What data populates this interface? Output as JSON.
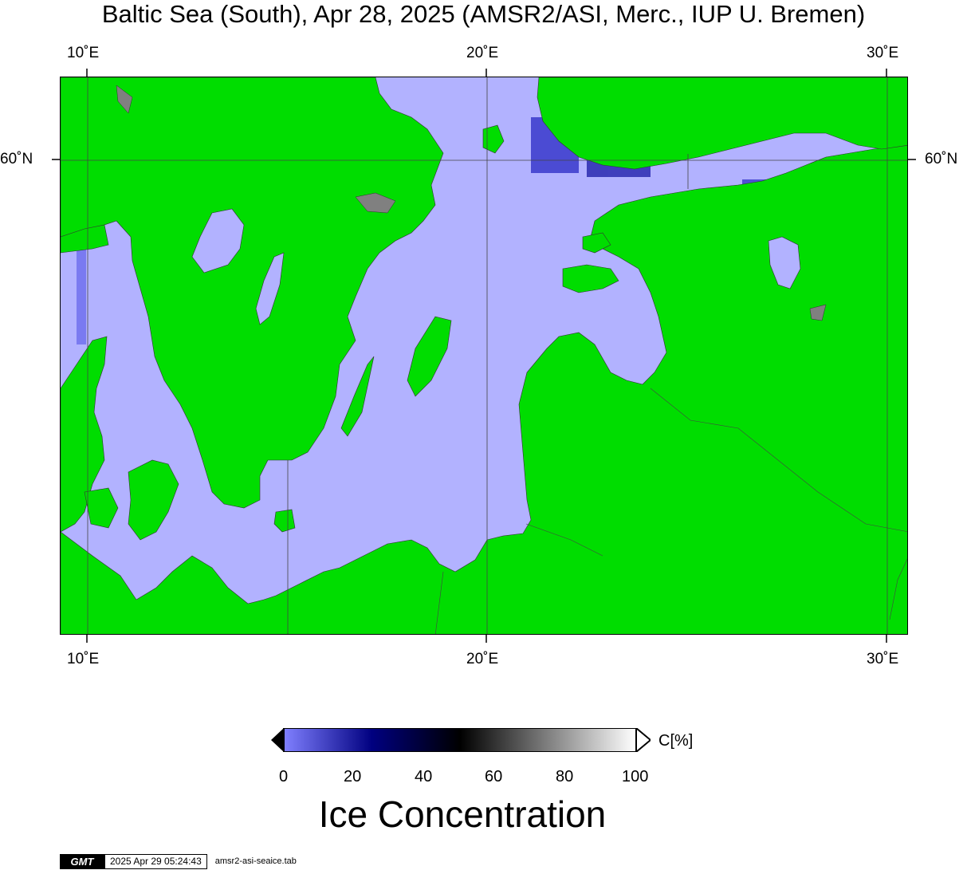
{
  "title": "Baltic Sea (South), Apr 28, 2025 (AMSR2/ASI, Merc., IUP U. Bremen)",
  "map": {
    "lon_ticks": [
      "10˚E",
      "20˚E",
      "30˚E"
    ],
    "lat_ticks": [
      "60˚N"
    ],
    "colors": {
      "land": "#00dd00",
      "open_water": "#b2b2ff",
      "no_data": "#808080"
    }
  },
  "colorbar": {
    "tick_labels": [
      "0",
      "20",
      "40",
      "60",
      "80",
      "100"
    ],
    "unit": "C[%]",
    "title": "Ice Concentration",
    "stops": [
      "#8080ff",
      "#000080",
      "#000000",
      "#ffffff"
    ]
  },
  "footer": {
    "logo": "GMT",
    "timestamp": "2025 Apr 29 05:24:43",
    "command": "amsr2-asi-seaice.tab"
  }
}
